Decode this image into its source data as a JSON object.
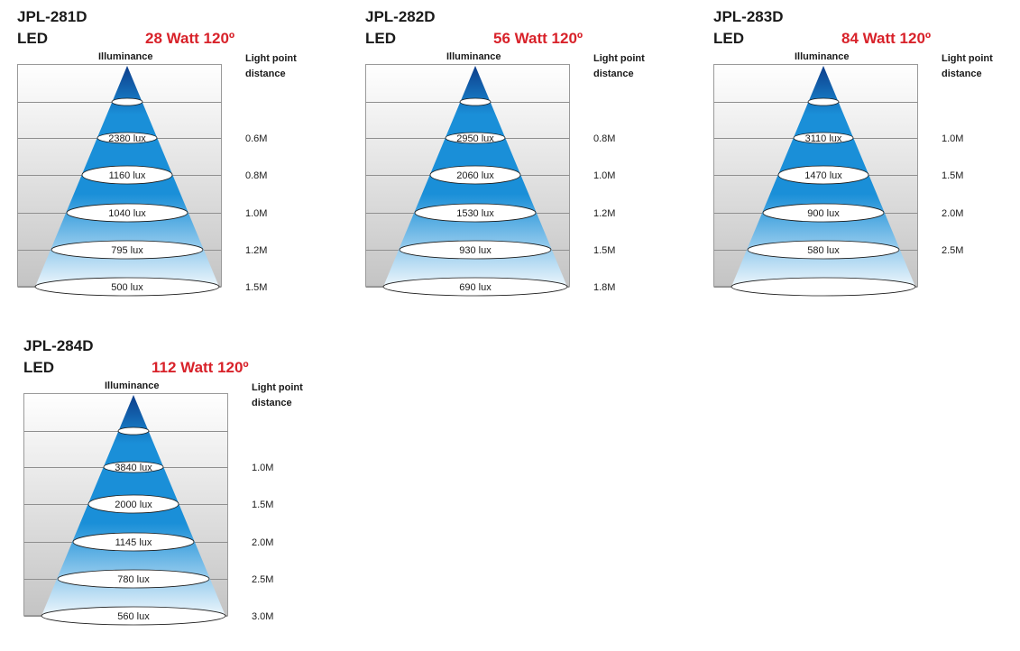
{
  "common": {
    "type_label": "LED",
    "illuminance_label": "Illuminance",
    "distance_label_line1": "Light point",
    "distance_label_line2": "distance"
  },
  "colors": {
    "watt_text": "#d8222a",
    "beam_top": "#0d3d8a",
    "beam_mid": "#1a8fd8",
    "beam_bottom": "#eef6fc"
  },
  "panels": [
    {
      "model": "JPL-281D",
      "watt": "28 Watt 120º",
      "rows": [
        {
          "lux": "2380 lux",
          "distance": "0.6M"
        },
        {
          "lux": "1160 lux",
          "distance": "0.8M"
        },
        {
          "lux": "1040 lux",
          "distance": "1.0M"
        },
        {
          "lux": "795 lux",
          "distance": "1.2M"
        },
        {
          "lux": "500 lux",
          "distance": "1.5M"
        }
      ]
    },
    {
      "model": "JPL-282D",
      "watt": "56 Watt 120º",
      "rows": [
        {
          "lux": "2950 lux",
          "distance": "0.8M"
        },
        {
          "lux": "2060 lux",
          "distance": "1.0M"
        },
        {
          "lux": "1530 lux",
          "distance": "1.2M"
        },
        {
          "lux": "930 lux",
          "distance": "1.5M"
        },
        {
          "lux": "690 lux",
          "distance": "1.8M"
        }
      ]
    },
    {
      "model": "JPL-283D",
      "watt": "84 Watt 120º",
      "rows": [
        {
          "lux": "3110 lux",
          "distance": "1.0M"
        },
        {
          "lux": "1470 lux",
          "distance": "1.5M"
        },
        {
          "lux": "900 lux",
          "distance": "2.0M"
        },
        {
          "lux": "580 lux",
          "distance": "2.5M"
        },
        {
          "lux": "",
          "distance": ""
        }
      ]
    },
    {
      "model": "JPL-284D",
      "watt": "112 Watt 120º",
      "rows": [
        {
          "lux": "3840 lux",
          "distance": "1.0M"
        },
        {
          "lux": "2000 lux",
          "distance": "1.5M"
        },
        {
          "lux": "1145 lux",
          "distance": "2.0M"
        },
        {
          "lux": "780 lux",
          "distance": "2.5M"
        },
        {
          "lux": "560 lux",
          "distance": "3.0M"
        }
      ]
    }
  ]
}
